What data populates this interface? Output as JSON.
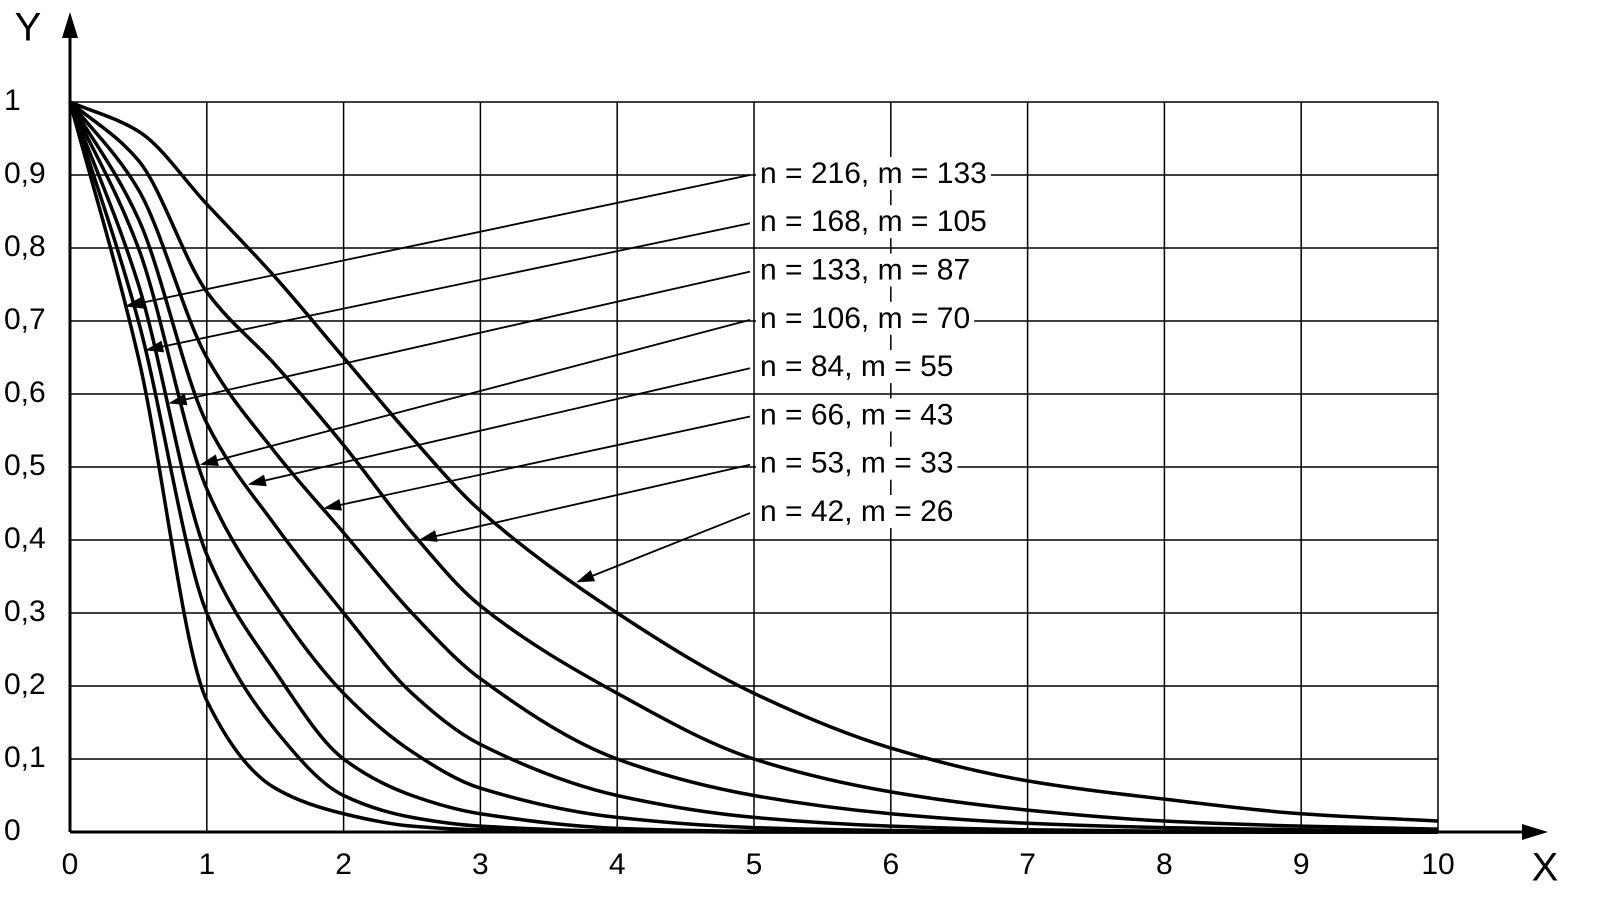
{
  "chart_data": {
    "type": "line",
    "x_label": "X",
    "y_label": "Y",
    "x": [
      0,
      0.5,
      1,
      1.5,
      2,
      2.5,
      3,
      4,
      5,
      6,
      7,
      8,
      9,
      10
    ],
    "series": [
      {
        "name": "n = 216, m = 133",
        "color": "#000000",
        "values": [
          1,
          0.65,
          0.18,
          0.06,
          0.025,
          0.008,
          0.003,
          0.001,
          0,
          0,
          0,
          0,
          0,
          0
        ]
      },
      {
        "name": "n = 168, m = 105",
        "color": "#000000",
        "values": [
          1,
          0.7,
          0.3,
          0.14,
          0.05,
          0.02,
          0.008,
          0.001,
          0,
          0,
          0,
          0,
          0,
          0
        ]
      },
      {
        "name": "n = 133, m = 87",
        "color": "#000000",
        "values": [
          1,
          0.75,
          0.38,
          0.22,
          0.1,
          0.05,
          0.025,
          0.005,
          0.001,
          0,
          0,
          0,
          0,
          0
        ]
      },
      {
        "name": "n = 106, m = 70",
        "color": "#000000",
        "values": [
          1,
          0.8,
          0.47,
          0.31,
          0.19,
          0.11,
          0.06,
          0.02,
          0.006,
          0.002,
          0,
          0,
          0,
          0
        ]
      },
      {
        "name": "n = 84, m = 55",
        "color": "#000000",
        "values": [
          1,
          0.84,
          0.56,
          0.42,
          0.3,
          0.19,
          0.12,
          0.05,
          0.02,
          0.008,
          0.003,
          0.001,
          0,
          0
        ]
      },
      {
        "name": "n = 66, m = 43",
        "color": "#000000",
        "values": [
          1,
          0.88,
          0.65,
          0.52,
          0.41,
          0.3,
          0.21,
          0.1,
          0.05,
          0.025,
          0.012,
          0.006,
          0.003,
          0.001
        ]
      },
      {
        "name": "n = 53, m = 33",
        "color": "#000000",
        "values": [
          1,
          0.92,
          0.74,
          0.64,
          0.53,
          0.41,
          0.31,
          0.19,
          0.1,
          0.055,
          0.03,
          0.015,
          0.008,
          0.004
        ]
      },
      {
        "name": "n = 42, m = 26",
        "color": "#000000",
        "values": [
          1,
          0.96,
          0.86,
          0.76,
          0.65,
          0.54,
          0.44,
          0.3,
          0.19,
          0.115,
          0.07,
          0.045,
          0.025,
          0.015
        ]
      }
    ],
    "xlim": [
      0,
      10
    ],
    "ylim": [
      0,
      1
    ],
    "xticks": [
      0,
      1,
      2,
      3,
      4,
      5,
      6,
      7,
      8,
      9,
      10
    ],
    "yticks": [
      0,
      {
        "value": 0.1,
        "label": "0,1"
      },
      {
        "value": 0.2,
        "label": "0,2"
      },
      {
        "value": 0.3,
        "label": "0,3"
      },
      {
        "value": 0.4,
        "label": "0,4"
      },
      {
        "value": 0.5,
        "label": "0,5"
      },
      {
        "value": 0.6,
        "label": "0,6"
      },
      {
        "value": 0.7,
        "label": "0,7"
      },
      {
        "value": 0.8,
        "label": "0,8"
      },
      {
        "value": 0.9,
        "label": "0,9"
      },
      1
    ],
    "grid": true
  }
}
